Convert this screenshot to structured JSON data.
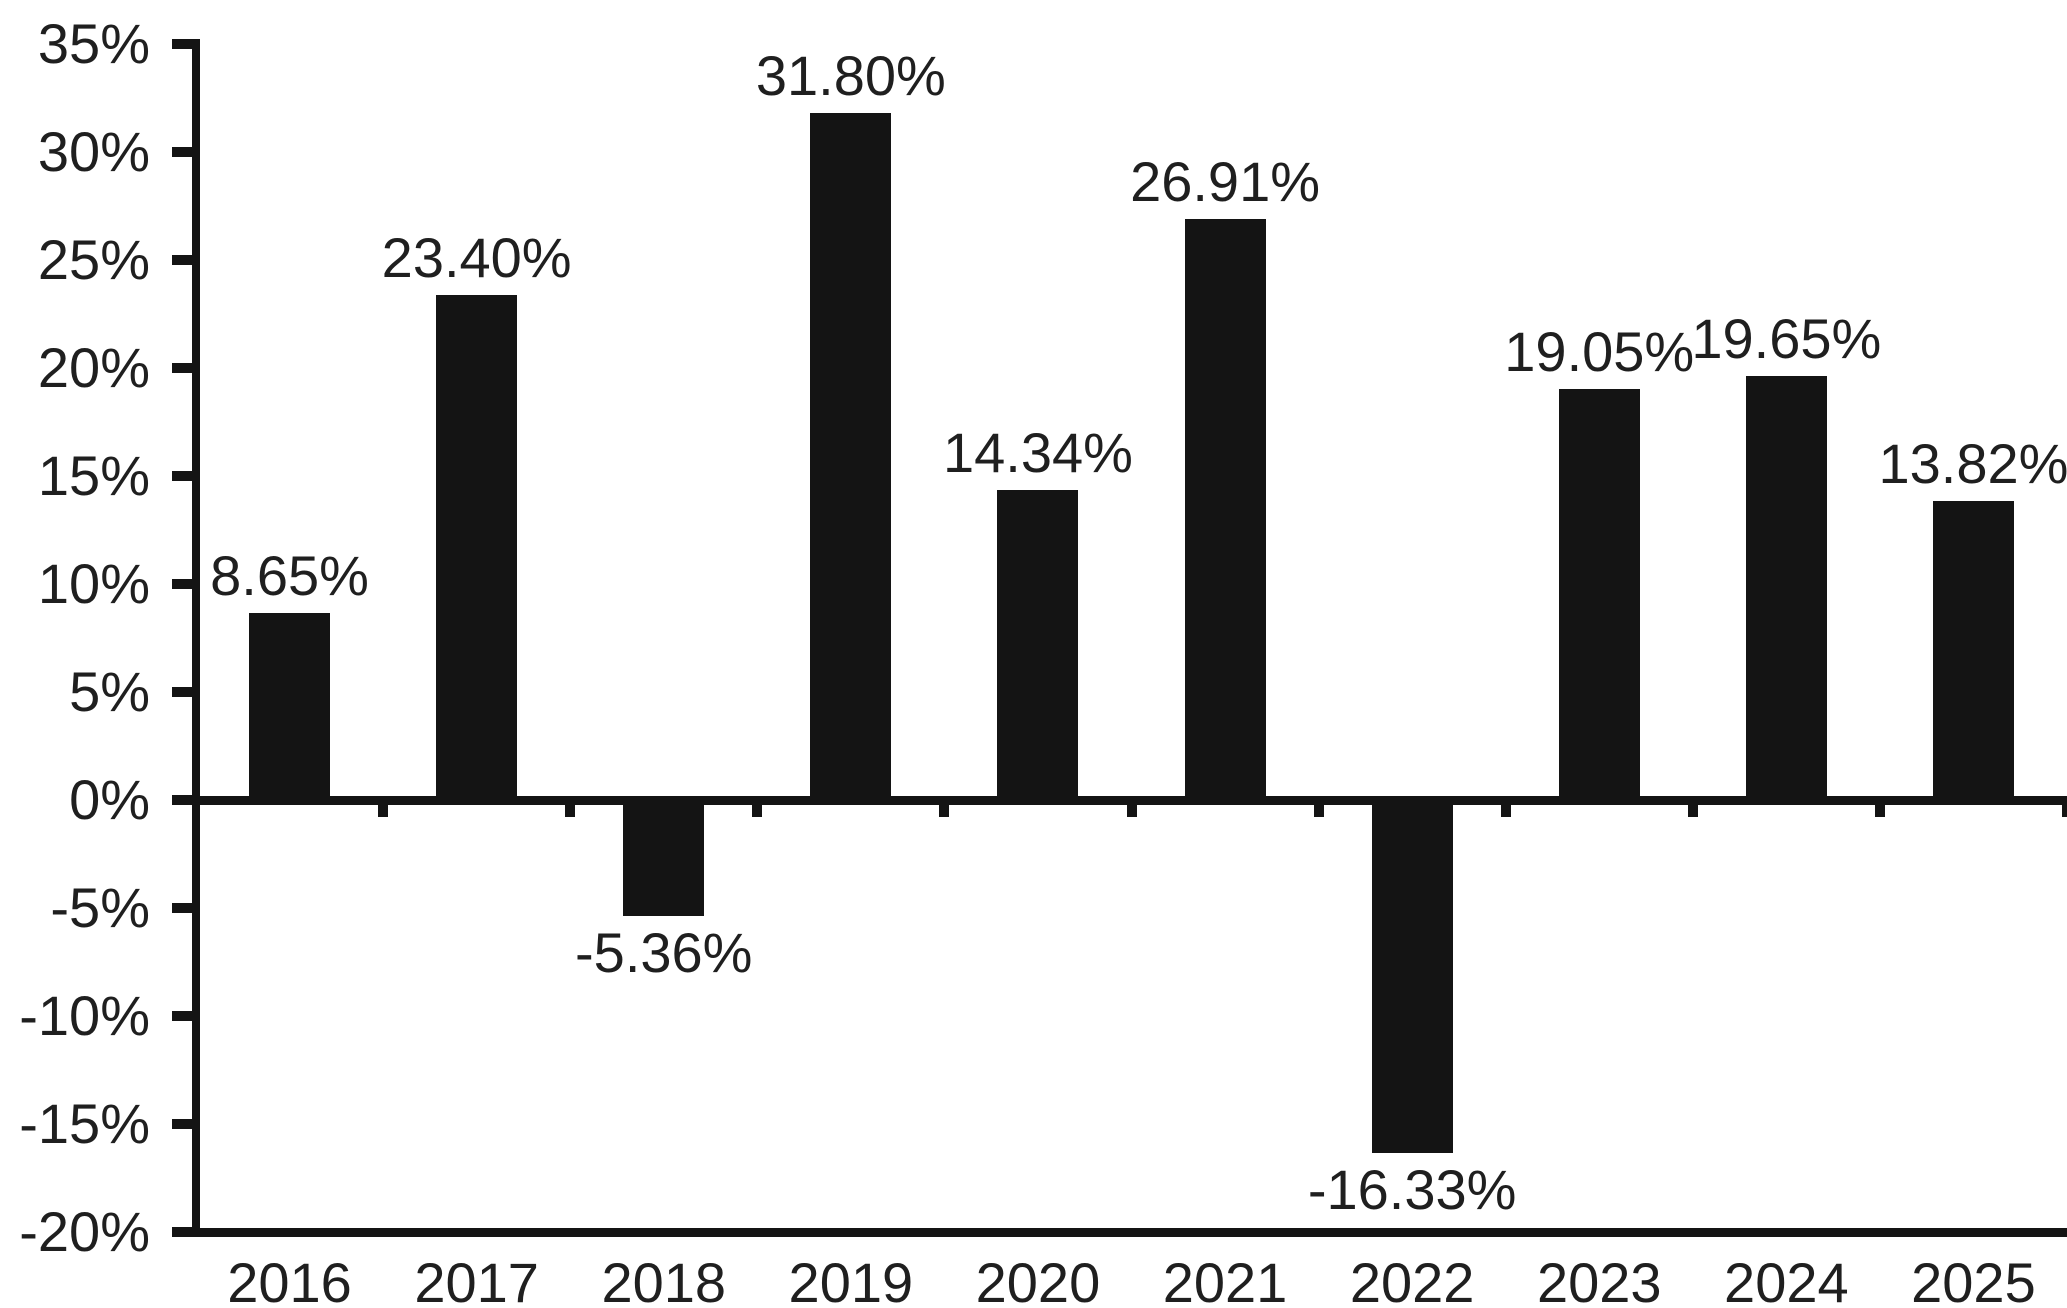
{
  "colors": {
    "background": "#ffffff",
    "bar": "#141414",
    "axis": "#141414",
    "text": "#1f1f1f"
  },
  "chart_data": {
    "type": "bar",
    "title": "",
    "xlabel": "",
    "ylabel": "",
    "categories": [
      "2016",
      "2017",
      "2018",
      "2019",
      "2020",
      "2021",
      "2022",
      "2023",
      "2024",
      "2025"
    ],
    "values": [
      8.65,
      23.4,
      -5.36,
      31.8,
      14.34,
      26.91,
      -16.33,
      19.05,
      19.65,
      13.82
    ],
    "data_labels": [
      "8.65%",
      "23.40%",
      "-5.36%",
      "31.80%",
      "14.34%",
      "26.91%",
      "-16.33%",
      "19.05%",
      "19.65%",
      "13.82%"
    ],
    "y_ticks": [
      35,
      30,
      25,
      20,
      15,
      10,
      5,
      0,
      -5,
      -10,
      -15,
      -20
    ],
    "y_tick_labels": [
      "35%",
      "30%",
      "25%",
      "20%",
      "15%",
      "10%",
      "5%",
      "0%",
      "-5%",
      "-10%",
      "-15%",
      "-20%"
    ],
    "ylim": [
      -20,
      35
    ],
    "grid": false,
    "legend_position": "none",
    "bar_color": "#141414"
  }
}
